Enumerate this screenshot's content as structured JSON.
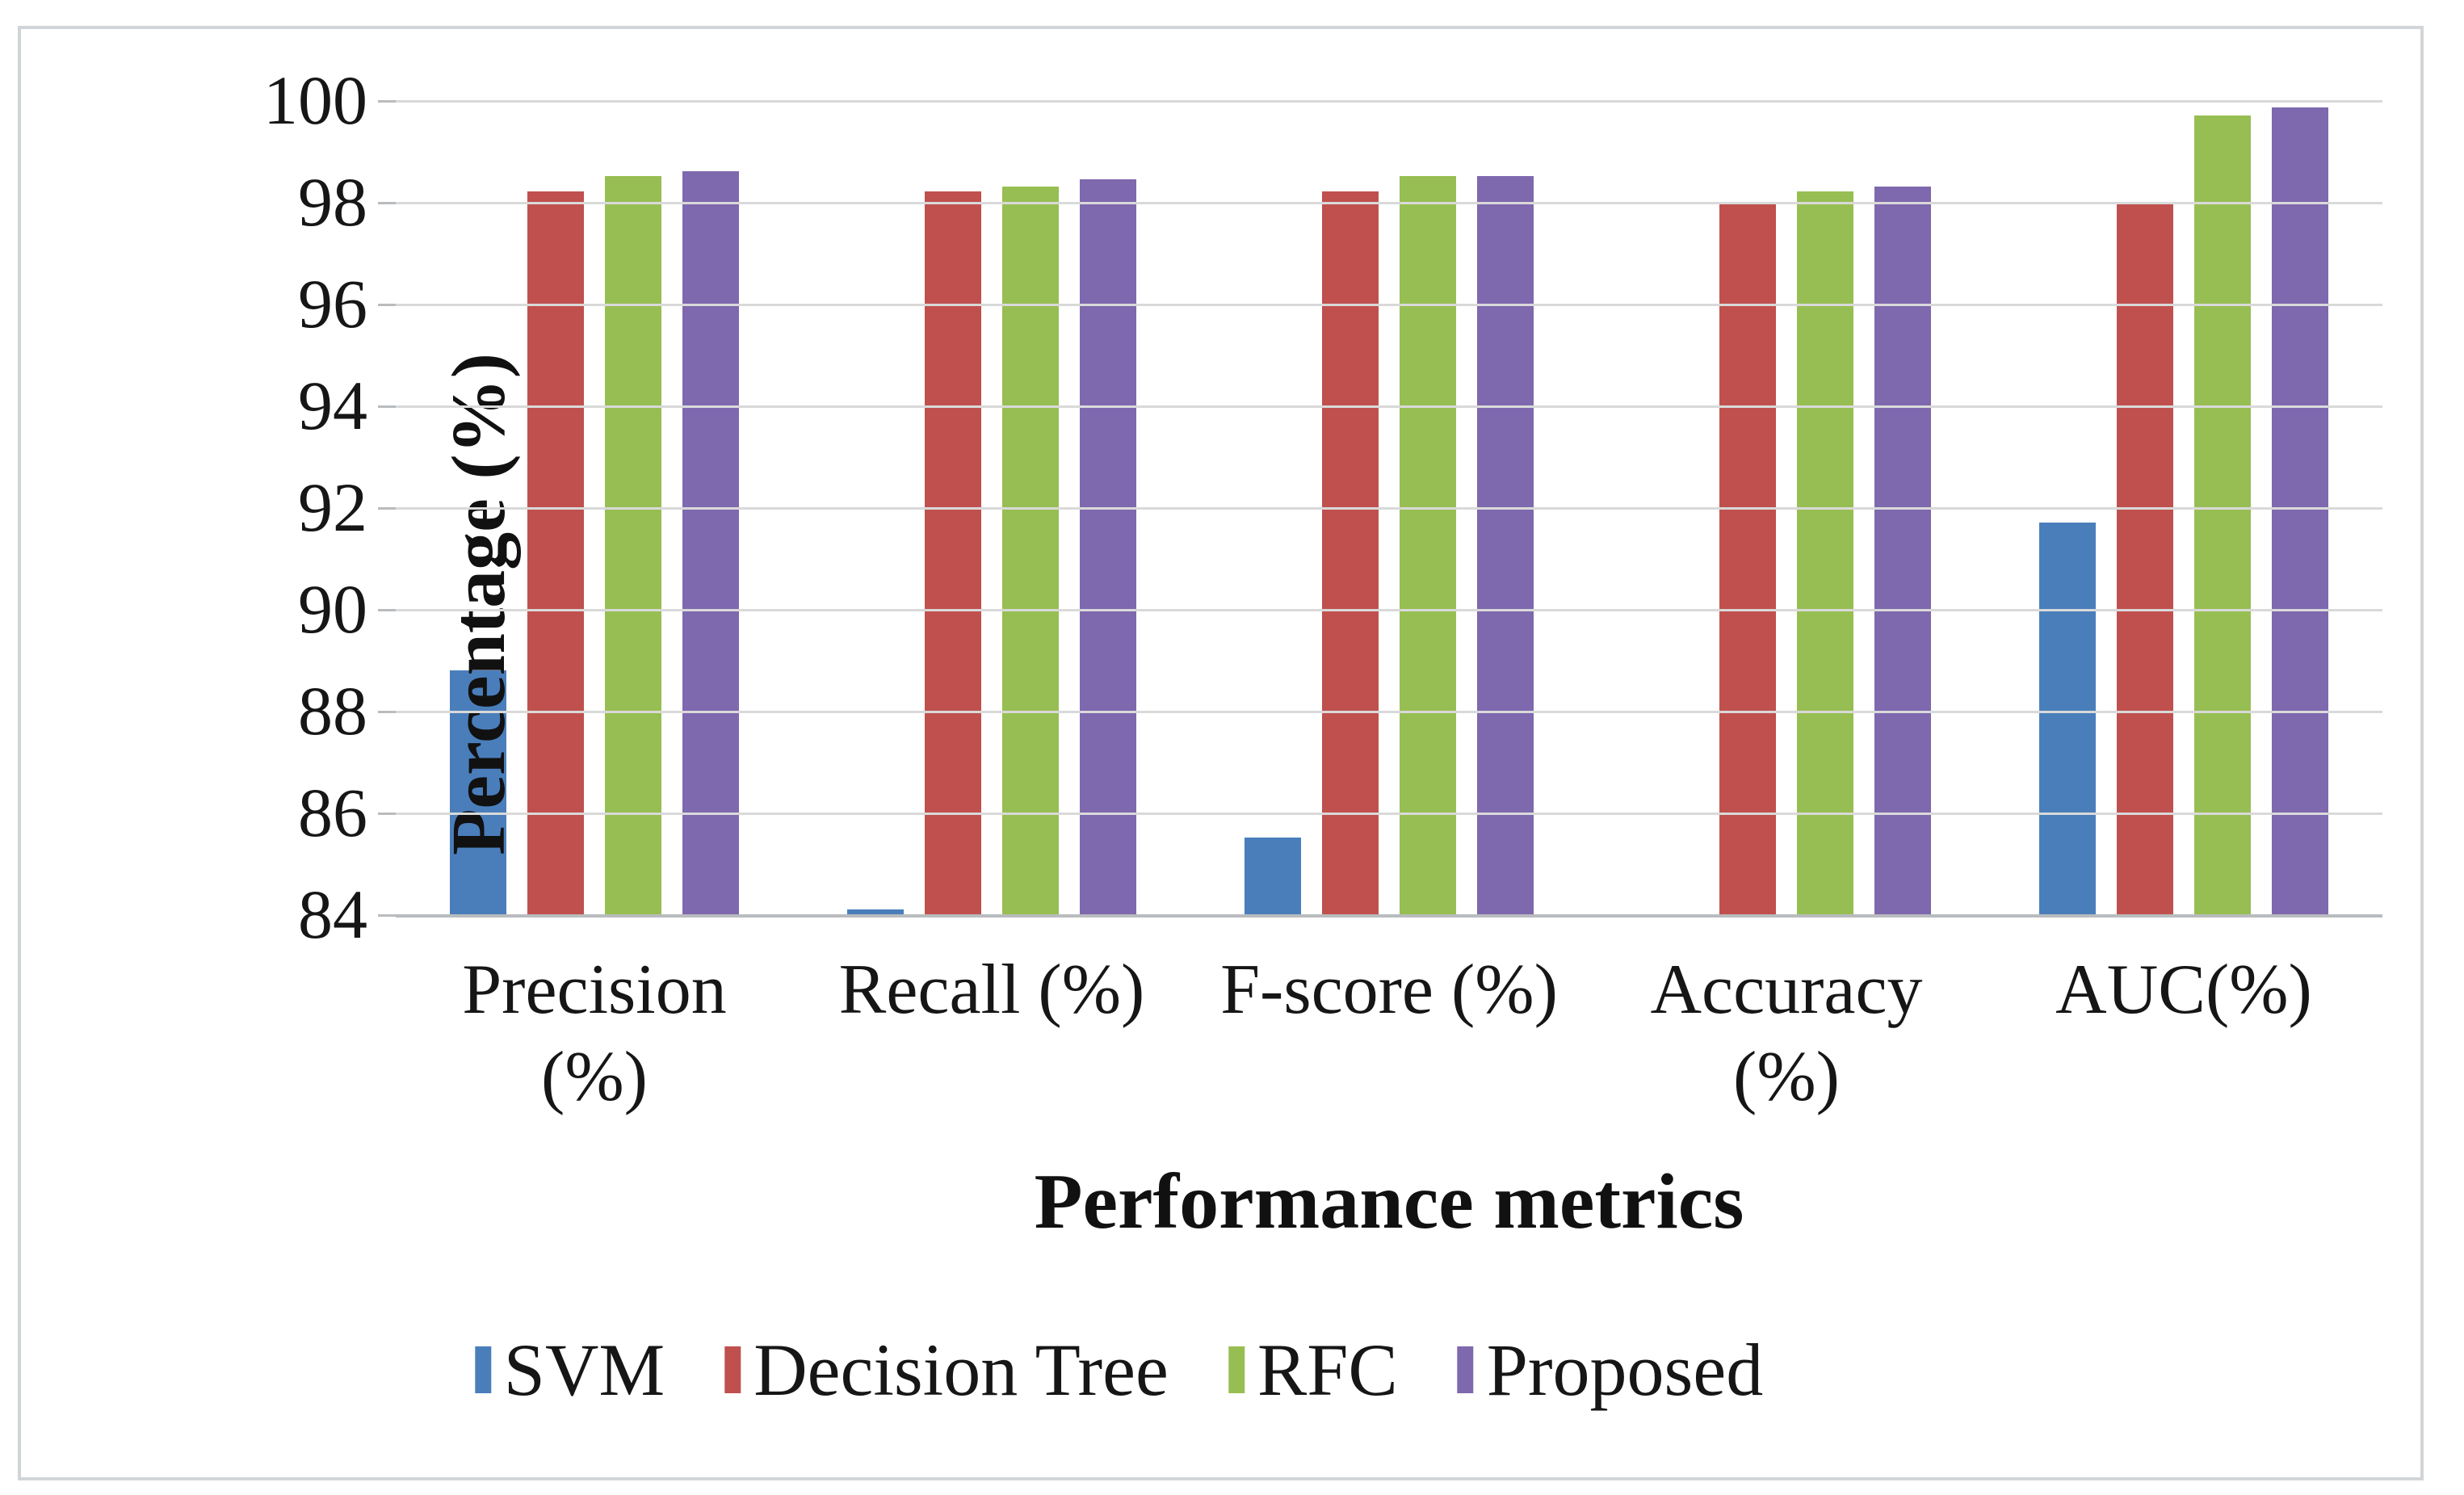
{
  "figure": {
    "y_axis_title": "Percentage (%)",
    "x_axis_title": "Performance metrics"
  },
  "chart_data": {
    "type": "bar",
    "title": "",
    "xlabel": "Performance metrics",
    "ylabel": "Percentage (%)",
    "ylim": [
      84,
      100
    ],
    "ytick_step": 2,
    "ytick_labels": [
      "100",
      "98",
      "96",
      "94",
      "92",
      "90",
      "88",
      "86",
      "84"
    ],
    "grid": true,
    "gridline_color": "#d9d9d9",
    "legend_position": "bottom",
    "categories": [
      "Precision (%)",
      "Recall (%)",
      "F-score (%)",
      "Accuracy (%)",
      "AUC(%)"
    ],
    "category_label_lines": [
      [
        "Precision",
        "(%)"
      ],
      [
        "Recall (%)"
      ],
      [
        "F-score (%)"
      ],
      [
        "Accuracy",
        "(%)"
      ],
      [
        "AUC(%)"
      ]
    ],
    "series": [
      {
        "name": "SVM",
        "color": "#4a7ebb",
        "values": [
          88.8,
          84.1,
          85.5,
          84.0,
          91.7
        ]
      },
      {
        "name": "Decision Tree",
        "color": "#c0504d",
        "values": [
          98.2,
          98.2,
          98.2,
          98.0,
          98.0
        ]
      },
      {
        "name": "RFC",
        "color": "#97be52",
        "values": [
          98.5,
          98.3,
          98.5,
          98.2,
          99.7
        ]
      },
      {
        "name": "Proposed",
        "color": "#7e68ae",
        "values": [
          98.6,
          98.45,
          98.5,
          98.3,
          99.85
        ]
      }
    ]
  }
}
